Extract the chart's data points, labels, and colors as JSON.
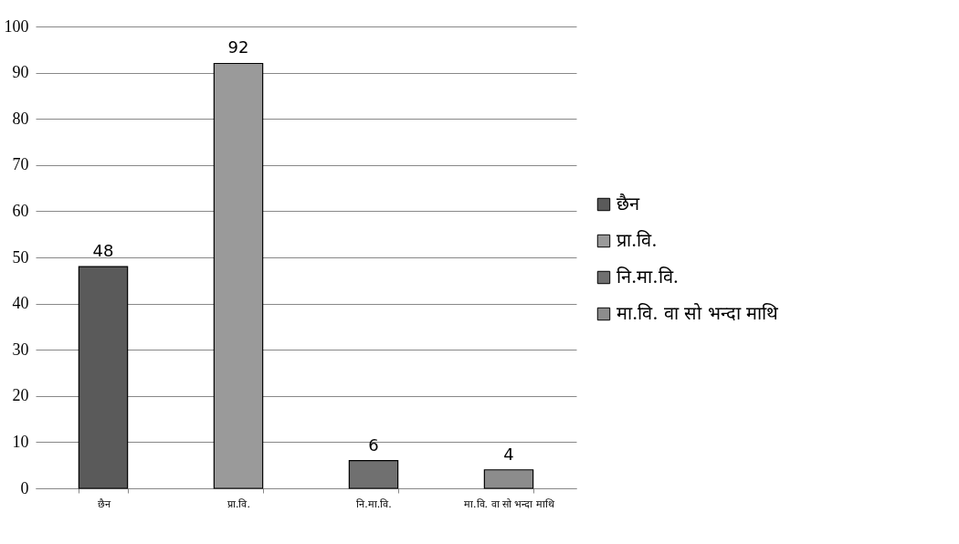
{
  "chart_data": {
    "type": "bar",
    "categories": [
      "छैन",
      "प्रा.वि.",
      "नि.मा.वि.",
      "मा.वि. वा सो भन्दा माथि"
    ],
    "series": [
      {
        "name": "छैन",
        "color": "#5a5a5a",
        "values": [
          48,
          null,
          null,
          null
        ]
      },
      {
        "name": "प्रा.वि.",
        "color": "#9a9a9a",
        "values": [
          null,
          92,
          null,
          null
        ]
      },
      {
        "name": "नि.मा.वि.",
        "color": "#707070",
        "values": [
          null,
          null,
          6,
          null
        ]
      },
      {
        "name": "मा.वि. वा सो भन्दा माथि",
        "color": "#8c8c8c",
        "values": [
          null,
          null,
          null,
          4
        ]
      }
    ],
    "ylim": [
      0,
      100
    ],
    "yticks": [
      0,
      10,
      20,
      30,
      40,
      50,
      60,
      70,
      80,
      90,
      100
    ],
    "grid": "y",
    "legend": "right",
    "data_labels": true
  }
}
